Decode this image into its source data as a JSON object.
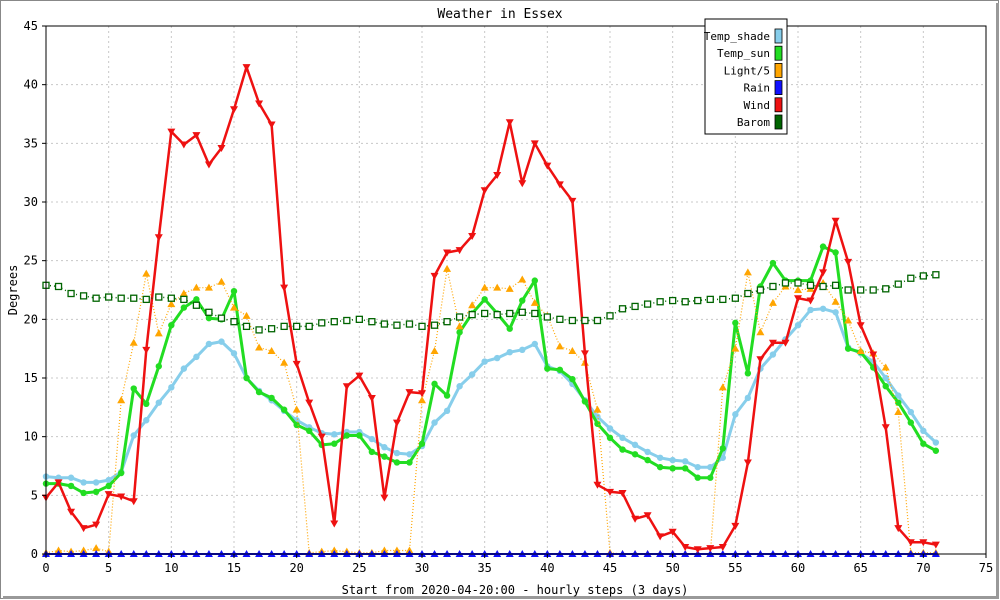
{
  "chart_data": {
    "type": "line",
    "title": "Weather in Essex",
    "xlabel": "Start from 2020-04-20:00 - hourly steps (3 days)",
    "ylabel": "Degrees",
    "xlim": [
      0,
      75
    ],
    "ylim": [
      0,
      45
    ],
    "xticks": [
      0,
      5,
      10,
      15,
      20,
      25,
      30,
      35,
      40,
      45,
      50,
      55,
      60,
      65,
      70,
      75
    ],
    "yticks": [
      0,
      5,
      10,
      15,
      20,
      25,
      30,
      35,
      40,
      45
    ],
    "grid": true,
    "legend_position": "top-right",
    "series": [
      {
        "name": "Temp_shade",
        "color": "#87ceeb",
        "marker": "circle",
        "values": [
          6.6,
          6.5,
          6.5,
          6.1,
          6.1,
          6.3,
          7.0,
          10.1,
          11.4,
          12.9,
          14.2,
          15.8,
          16.8,
          17.9,
          18.1,
          17.1,
          15.0,
          13.9,
          13.1,
          12.2,
          11.4,
          10.8,
          10.3,
          10.2,
          10.4,
          10.4,
          9.8,
          9.1,
          8.6,
          8.5,
          9.2,
          11.2,
          12.2,
          14.3,
          15.3,
          16.4,
          16.7,
          17.2,
          17.4,
          17.9,
          16.0,
          15.6,
          14.5,
          13.1,
          11.7,
          10.7,
          9.9,
          9.3,
          8.7,
          8.2,
          8.0,
          7.9,
          7.4,
          7.4,
          8.2,
          11.9,
          13.3,
          15.8,
          17.0,
          18.3,
          19.5,
          20.8,
          20.9,
          20.6,
          17.6,
          17.1,
          16.4,
          15.0,
          13.5,
          12.1,
          10.5,
          9.5
        ]
      },
      {
        "name": "Temp_sun",
        "color": "#22dd22",
        "marker": "circle",
        "values": [
          6.0,
          6.0,
          5.8,
          5.2,
          5.3,
          5.8,
          6.9,
          14.1,
          12.8,
          16.0,
          19.5,
          21.0,
          21.7,
          20.1,
          20.0,
          22.4,
          15.0,
          13.8,
          13.3,
          12.3,
          11.0,
          10.5,
          9.3,
          9.4,
          10.1,
          10.1,
          8.7,
          8.3,
          7.8,
          7.8,
          9.4,
          14.5,
          13.5,
          18.9,
          20.5,
          21.7,
          20.5,
          19.2,
          21.6,
          23.3,
          15.8,
          15.7,
          14.9,
          13.0,
          11.1,
          9.9,
          8.9,
          8.5,
          8.0,
          7.4,
          7.3,
          7.3,
          6.5,
          6.5,
          9.0,
          19.7,
          15.4,
          22.8,
          24.8,
          23.3,
          23.3,
          23.3,
          26.2,
          25.7,
          17.5,
          17.2,
          15.9,
          14.3,
          12.9,
          11.2,
          9.4,
          8.8
        ]
      },
      {
        "name": "Light/5",
        "color": "#ffa500",
        "marker": "triangle",
        "values": [
          0.1,
          0.3,
          0.2,
          0.3,
          0.5,
          0.2,
          13.1,
          18.0,
          23.9,
          18.8,
          21.3,
          22.2,
          22.7,
          22.7,
          23.2,
          21.0,
          20.3,
          17.6,
          17.3,
          16.3,
          12.3,
          0.1,
          0.2,
          0.3,
          0.2,
          0.1,
          0.1,
          0.3,
          0.3,
          0.3,
          13.1,
          17.3,
          24.3,
          19.4,
          21.2,
          22.7,
          22.7,
          22.6,
          23.4,
          21.4,
          20.3,
          17.7,
          17.3,
          16.3,
          12.3,
          0.1,
          0.0,
          0.0,
          0.0,
          0.0,
          0.0,
          0.0,
          0.0,
          0.0,
          14.2,
          17.5,
          24.0,
          18.9,
          21.4,
          22.8,
          22.5,
          22.6,
          23.1,
          21.5,
          19.9,
          17.3,
          17.1,
          15.9,
          12.1,
          0.1,
          0.1,
          0.1
        ]
      },
      {
        "name": "Rain",
        "color": "#1010ff",
        "marker": "triangle",
        "values": [
          0,
          0,
          0,
          0,
          0,
          0,
          0,
          0,
          0,
          0,
          0,
          0,
          0,
          0,
          0,
          0,
          0,
          0,
          0,
          0,
          0,
          0,
          0,
          0,
          0,
          0,
          0,
          0,
          0,
          0,
          0,
          0,
          0,
          0,
          0,
          0,
          0,
          0,
          0,
          0,
          0,
          0,
          0,
          0,
          0,
          0,
          0,
          0,
          0,
          0,
          0,
          0,
          0,
          0,
          0,
          0,
          0,
          0,
          0,
          0,
          0,
          0,
          0,
          0,
          0,
          0,
          0,
          0,
          0,
          0,
          0,
          0
        ]
      },
      {
        "name": "Wind",
        "color": "#ee1111",
        "marker": "triangle-down",
        "values": [
          4.8,
          6.1,
          3.6,
          2.2,
          2.5,
          5.1,
          4.9,
          4.5,
          17.4,
          27.0,
          36.0,
          34.9,
          35.7,
          33.2,
          34.6,
          37.9,
          41.5,
          38.4,
          36.6,
          22.7,
          16.2,
          12.9,
          10.0,
          2.6,
          14.3,
          15.2,
          13.3,
          4.8,
          11.2,
          13.8,
          13.7,
          23.7,
          25.7,
          25.9,
          27.1,
          31.0,
          32.3,
          36.8,
          31.6,
          35.0,
          33.1,
          31.5,
          30.1,
          17.1,
          5.9,
          5.3,
          5.2,
          3.0,
          3.3,
          1.5,
          1.9,
          0.6,
          0.4,
          0.5,
          0.6,
          2.4,
          7.8,
          16.6,
          18.0,
          18.0,
          21.8,
          21.6,
          24.0,
          28.4,
          24.9,
          19.5,
          17.0,
          10.8,
          2.2,
          1.0,
          1.0,
          0.8
        ]
      },
      {
        "name": "Barom",
        "color": "#006400",
        "marker": "square",
        "values": [
          22.9,
          22.8,
          22.2,
          22.0,
          21.8,
          21.9,
          21.8,
          21.8,
          21.7,
          21.9,
          21.8,
          21.7,
          21.2,
          20.6,
          20.1,
          19.8,
          19.4,
          19.1,
          19.2,
          19.4,
          19.4,
          19.4,
          19.7,
          19.8,
          19.9,
          20.0,
          19.8,
          19.6,
          19.5,
          19.6,
          19.4,
          19.5,
          19.8,
          20.2,
          20.4,
          20.5,
          20.4,
          20.5,
          20.6,
          20.5,
          20.2,
          20.0,
          19.9,
          19.9,
          19.9,
          20.3,
          20.9,
          21.1,
          21.3,
          21.5,
          21.6,
          21.5,
          21.6,
          21.7,
          21.7,
          21.8,
          22.2,
          22.5,
          22.8,
          23.1,
          23.1,
          22.9,
          22.8,
          22.9,
          22.5,
          22.5,
          22.5,
          22.6,
          23.0,
          23.5,
          23.7,
          23.8
        ]
      }
    ]
  }
}
